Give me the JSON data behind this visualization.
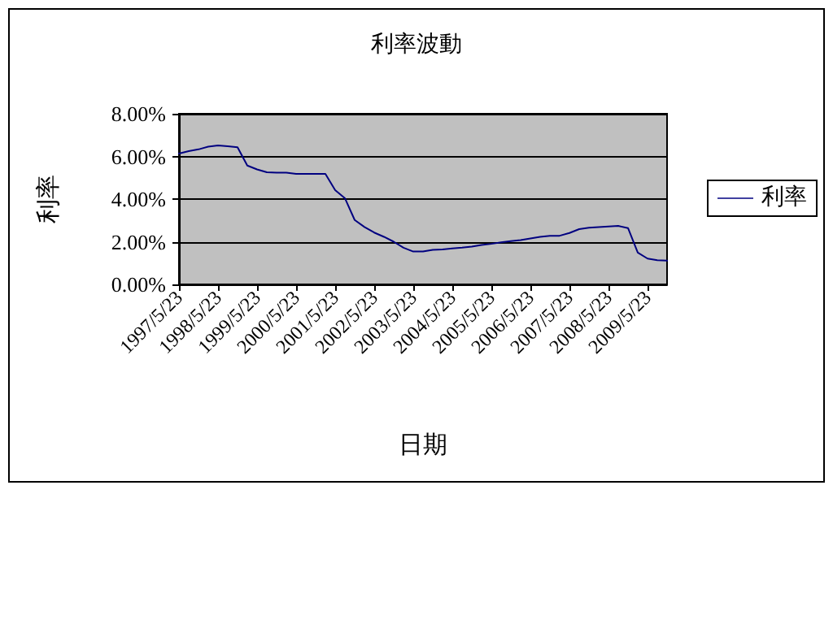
{
  "chart_data": {
    "type": "line",
    "title": "利率波動",
    "xlabel": "日期",
    "ylabel": "利率",
    "categories": [
      "1997/5/23",
      null,
      null,
      null,
      "1998/5/23",
      null,
      null,
      null,
      "1999/5/23",
      null,
      null,
      null,
      "2000/5/23",
      null,
      null,
      null,
      "2001/5/23",
      null,
      null,
      null,
      "2002/5/23",
      null,
      null,
      null,
      "2003/5/23",
      null,
      null,
      null,
      "2004/5/23",
      null,
      null,
      null,
      "2005/5/23",
      null,
      null,
      null,
      "2006/5/23",
      null,
      null,
      null,
      "2007/5/23",
      null,
      null,
      null,
      "2008/5/23",
      null,
      null,
      null,
      "2009/5/23",
      null,
      null
    ],
    "series": [
      {
        "name": "利率",
        "color": "#000080",
        "values": [
          6.13,
          6.25,
          6.33,
          6.46,
          6.51,
          6.48,
          6.43,
          5.57,
          5.39,
          5.26,
          5.24,
          5.24,
          5.18,
          5.18,
          5.18,
          5.18,
          4.42,
          4.04,
          3.02,
          2.69,
          2.43,
          2.23,
          2.0,
          1.72,
          1.54,
          1.54,
          1.62,
          1.64,
          1.69,
          1.72,
          1.77,
          1.85,
          1.9,
          1.97,
          2.03,
          2.08,
          2.15,
          2.23,
          2.28,
          2.28,
          2.41,
          2.59,
          2.66,
          2.69,
          2.71,
          2.74,
          2.64,
          1.49,
          1.21,
          1.13,
          1.11
        ]
      }
    ],
    "ylim": [
      0,
      8
    ],
    "yticks": [
      {
        "value": 0,
        "label": "0.00%"
      },
      {
        "value": 2,
        "label": "2.00%"
      },
      {
        "value": 4,
        "label": "4.00%"
      },
      {
        "value": 6,
        "label": "6.00%"
      },
      {
        "value": 8,
        "label": "8.00%"
      }
    ],
    "grid": "y",
    "legend": "right",
    "marker": "none",
    "line_style": "solid"
  }
}
